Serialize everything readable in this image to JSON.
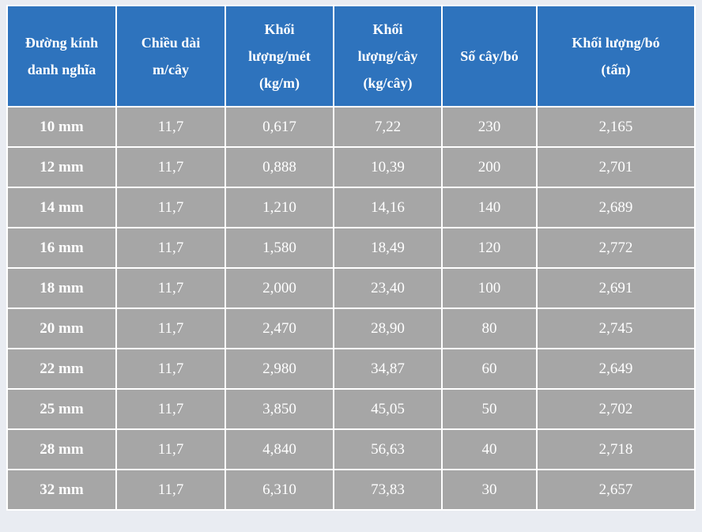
{
  "table": {
    "headers": [
      [
        "Đường kính",
        "danh nghĩa"
      ],
      [
        "Chiều dài",
        "m/cây"
      ],
      [
        "Khối",
        "lượng/mét",
        "(kg/m)"
      ],
      [
        "Khối",
        "lượng/cây",
        "(kg/cây)"
      ],
      [
        "Số cây/bó"
      ],
      [
        "Khối lượng/bó",
        "(tấn)"
      ]
    ],
    "rows": [
      [
        "10 mm",
        "11,7",
        "0,617",
        "7,22",
        "230",
        "2,165"
      ],
      [
        "12 mm",
        "11,7",
        "0,888",
        "10,39",
        "200",
        "2,701"
      ],
      [
        "14 mm",
        "11,7",
        "1,210",
        "14,16",
        "140",
        "2,689"
      ],
      [
        "16 mm",
        "11,7",
        "1,580",
        "18,49",
        "120",
        "2,772"
      ],
      [
        "18 mm",
        "11,7",
        "2,000",
        "23,40",
        "100",
        "2,691"
      ],
      [
        "20 mm",
        "11,7",
        "2,470",
        "28,90",
        "80",
        "2,745"
      ],
      [
        "22 mm",
        "11,7",
        "2,980",
        "34,87",
        "60",
        "2,649"
      ],
      [
        "25 mm",
        "11,7",
        "3,850",
        "45,05",
        "50",
        "2,702"
      ],
      [
        "28 mm",
        "11,7",
        "4,840",
        "56,63",
        "40",
        "2,718"
      ],
      [
        "32 mm",
        "11,7",
        "6,310",
        "73,83",
        "30",
        "2,657"
      ]
    ]
  },
  "colors": {
    "header_bg": "#2e73bd",
    "body_bg": "#a6a6a6",
    "text": "#ffffff",
    "border": "#ffffff"
  }
}
